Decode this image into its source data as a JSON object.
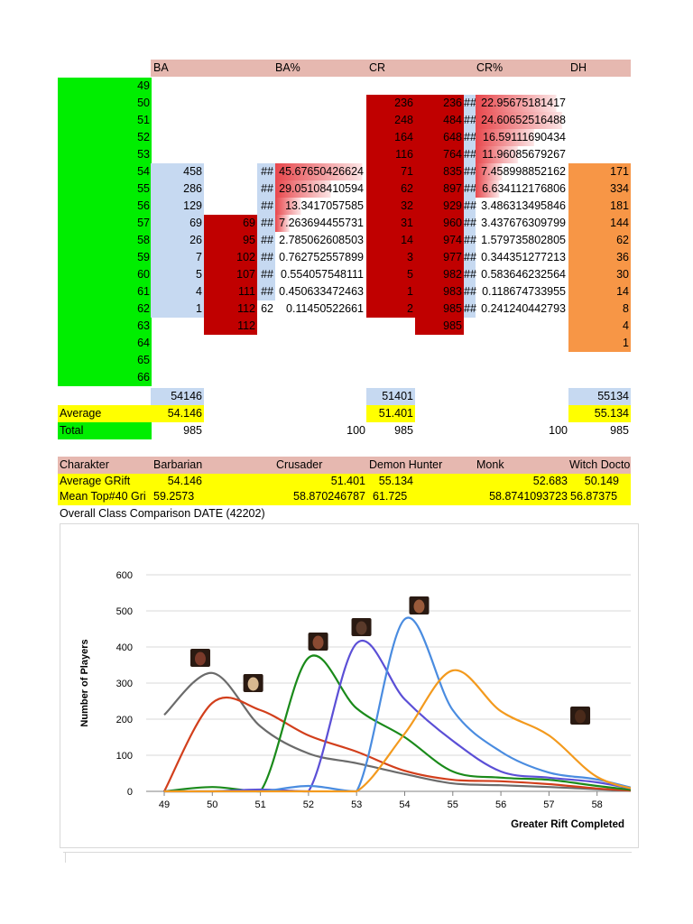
{
  "sheet": {
    "headers": [
      "BA",
      "BA%",
      "CR",
      "CR%",
      "DH"
    ],
    "rows": [
      {
        "gr": "49",
        "ba": "",
        "ba_cum": "",
        "ba_hash": "",
        "ba_pct": "",
        "cr": "",
        "cr_cum": "",
        "cr_hash": "",
        "cr_pct": "",
        "dh": ""
      },
      {
        "gr": "50",
        "ba": "",
        "ba_cum": "",
        "ba_hash": "",
        "ba_pct": "",
        "cr": "236",
        "cr_cum": "236",
        "cr_hash": "##",
        "cr_pct": "22.95675181417",
        "dh": ""
      },
      {
        "gr": "51",
        "ba": "",
        "ba_cum": "",
        "ba_hash": "",
        "ba_pct": "",
        "cr": "248",
        "cr_cum": "484",
        "cr_hash": "##",
        "cr_pct": "24.60652516488",
        "dh": ""
      },
      {
        "gr": "52",
        "ba": "",
        "ba_cum": "",
        "ba_hash": "",
        "ba_pct": "",
        "cr": "164",
        "cr_cum": "648",
        "cr_hash": "##",
        "cr_pct": "16.59111690434",
        "dh": ""
      },
      {
        "gr": "53",
        "ba": "",
        "ba_cum": "",
        "ba_hash": "",
        "ba_pct": "",
        "cr": "116",
        "cr_cum": "764",
        "cr_hash": "##",
        "cr_pct": "11.96085679267",
        "dh": ""
      },
      {
        "gr": "54",
        "ba": "458",
        "ba_cum": "",
        "ba_hash": "##",
        "ba_pct": "45.67650426624",
        "cr": "71",
        "cr_cum": "835",
        "cr_hash": "##",
        "cr_pct": "7.458998852162",
        "dh": "171"
      },
      {
        "gr": "55",
        "ba": "286",
        "ba_cum": "",
        "ba_hash": "##",
        "ba_pct": "29.05108410594",
        "cr": "62",
        "cr_cum": "897",
        "cr_hash": "##",
        "cr_pct": "6.634112176806",
        "dh": "334"
      },
      {
        "gr": "56",
        "ba": "129",
        "ba_cum": "",
        "ba_hash": "##",
        "ba_pct": "13.3417057585",
        "cr": "32",
        "cr_cum": "929",
        "cr_hash": "##",
        "cr_pct": "3.486313495846",
        "dh": "181"
      },
      {
        "gr": "57",
        "ba": "69",
        "ba_cum": "69",
        "ba_hash": "##",
        "ba_pct": "7.263694455731",
        "cr": "31",
        "cr_cum": "960",
        "cr_hash": "##",
        "cr_pct": "3.437676309799",
        "dh": "144"
      },
      {
        "gr": "58",
        "ba": "26",
        "ba_cum": "95",
        "ba_hash": "##",
        "ba_pct": "2.785062608503",
        "cr": "14",
        "cr_cum": "974",
        "cr_hash": "##",
        "cr_pct": "1.579735802805",
        "dh": "62"
      },
      {
        "gr": "59",
        "ba": "7",
        "ba_cum": "102",
        "ba_hash": "##",
        "ba_pct": "0.762752557899",
        "cr": "3",
        "cr_cum": "977",
        "cr_hash": "##",
        "cr_pct": "0.344351277213",
        "dh": "36"
      },
      {
        "gr": "60",
        "ba": "5",
        "ba_cum": "107",
        "ba_hash": "##",
        "ba_pct": "0.554057548111",
        "cr": "5",
        "cr_cum": "982",
        "cr_hash": "##",
        "cr_pct": "0.583646232564",
        "dh": "30"
      },
      {
        "gr": "61",
        "ba": "4",
        "ba_cum": "111",
        "ba_hash": "##",
        "ba_pct": "0.450633472463",
        "cr": "1",
        "cr_cum": "983",
        "cr_hash": "##",
        "cr_pct": "0.118674733955",
        "dh": "14"
      },
      {
        "gr": "62",
        "ba": "1",
        "ba_cum": "112",
        "ba_hash": "62",
        "ba_pct": "0.11450522661",
        "cr": "2",
        "cr_cum": "985",
        "cr_hash": "##",
        "cr_pct": "0.241240442793",
        "dh": "8"
      },
      {
        "gr": "63",
        "ba": "",
        "ba_cum": "112",
        "ba_hash": "",
        "ba_pct": "",
        "cr": "",
        "cr_cum": "985",
        "cr_hash": "",
        "cr_pct": "",
        "dh": "4"
      },
      {
        "gr": "64",
        "ba": "",
        "ba_cum": "",
        "ba_hash": "",
        "ba_pct": "",
        "cr": "",
        "cr_cum": "",
        "cr_hash": "",
        "cr_pct": "",
        "dh": "1"
      },
      {
        "gr": "65",
        "ba": "",
        "ba_cum": "",
        "ba_hash": "",
        "ba_pct": "",
        "cr": "",
        "cr_cum": "",
        "cr_hash": "",
        "cr_pct": "",
        "dh": ""
      },
      {
        "gr": "66",
        "ba": "",
        "ba_cum": "",
        "ba_hash": "",
        "ba_pct": "",
        "cr": "",
        "cr_cum": "",
        "cr_hash": "",
        "cr_pct": "",
        "dh": ""
      }
    ],
    "sum_row": {
      "ba": "54146",
      "cr": "51401",
      "dh": "55134"
    },
    "average_row": {
      "label": "Average",
      "ba": "54.146",
      "cr": "51.401",
      "dh": "55.134"
    },
    "total_row": {
      "label": "Total",
      "ba": "985",
      "ba_pct": "100",
      "cr": "985",
      "cr_pct": "100",
      "dh": "985"
    },
    "colors": {
      "green": "#00ee00",
      "yellow": "#ffff00",
      "header_pink": "#e6b8b0",
      "light_blue": "#c6d9f1",
      "dark_red": "#c00000",
      "orange": "#f79646",
      "pct_red": "#e8474c"
    }
  },
  "summary": {
    "headers": [
      "Charakter",
      "Barbarian",
      "Crusader",
      "Demon Hunter",
      "Monk",
      "Witch Docto"
    ],
    "avg_row": [
      "Average GRift",
      "54.146",
      "51.401",
      "55.134",
      "52.683",
      "50.149"
    ],
    "mean_row": [
      "Mean Top#40 Gri",
      "59.2573",
      "58.870246787",
      "61.725",
      "58.8741093723",
      "56.87375"
    ],
    "title": "Overall Class Comparison DATE (42202)"
  },
  "chart_data": {
    "type": "line",
    "ylabel": "Number of Players",
    "xlabel": "Greater Rift Completed",
    "x": [
      49,
      50,
      51,
      52,
      53,
      54,
      55,
      56,
      57,
      58,
      59
    ],
    "ylim": [
      0,
      600
    ],
    "xlim": [
      49,
      59
    ],
    "y_ticks": [
      0,
      100,
      200,
      300,
      400,
      500,
      600
    ],
    "x_ticks": [
      49,
      50,
      51,
      52,
      53,
      54,
      55,
      56,
      57,
      58
    ],
    "grid": true,
    "series": [
      {
        "color": "#6b6b6b",
        "values": [
          212,
          328,
          180,
          105,
          78,
          48,
          22,
          17,
          12,
          6,
          0
        ]
      },
      {
        "color": "#d23f1c",
        "values": [
          0,
          245,
          225,
          155,
          110,
          57,
          32,
          28,
          20,
          8,
          0
        ]
      },
      {
        "color": "#1a8a1a",
        "values": [
          0,
          12,
          0,
          370,
          230,
          150,
          55,
          38,
          32,
          15,
          0
        ]
      },
      {
        "color": "#5b4fd6",
        "values": [
          0,
          0,
          5,
          0,
          410,
          255,
          140,
          55,
          38,
          25,
          0
        ]
      },
      {
        "color": "#4a8ce0",
        "values": [
          0,
          0,
          0,
          15,
          0,
          477,
          225,
          110,
          52,
          33,
          0
        ]
      },
      {
        "color": "#f39a1e",
        "values": [
          0,
          0,
          0,
          0,
          0,
          160,
          335,
          222,
          155,
          40,
          0
        ]
      }
    ],
    "avatars": [
      {
        "x": 49.75,
        "y": 370,
        "color": "#7a3a2a"
      },
      {
        "x": 50.85,
        "y": 300,
        "color": "#d8b890"
      },
      {
        "x": 52.2,
        "y": 415,
        "color": "#8a4a32"
      },
      {
        "x": 53.1,
        "y": 455,
        "color": "#5a3a2a"
      },
      {
        "x": 54.3,
        "y": 515,
        "color": "#9a5a3a"
      },
      {
        "x": 57.65,
        "y": 210,
        "color": "#4a2a1a"
      }
    ]
  }
}
